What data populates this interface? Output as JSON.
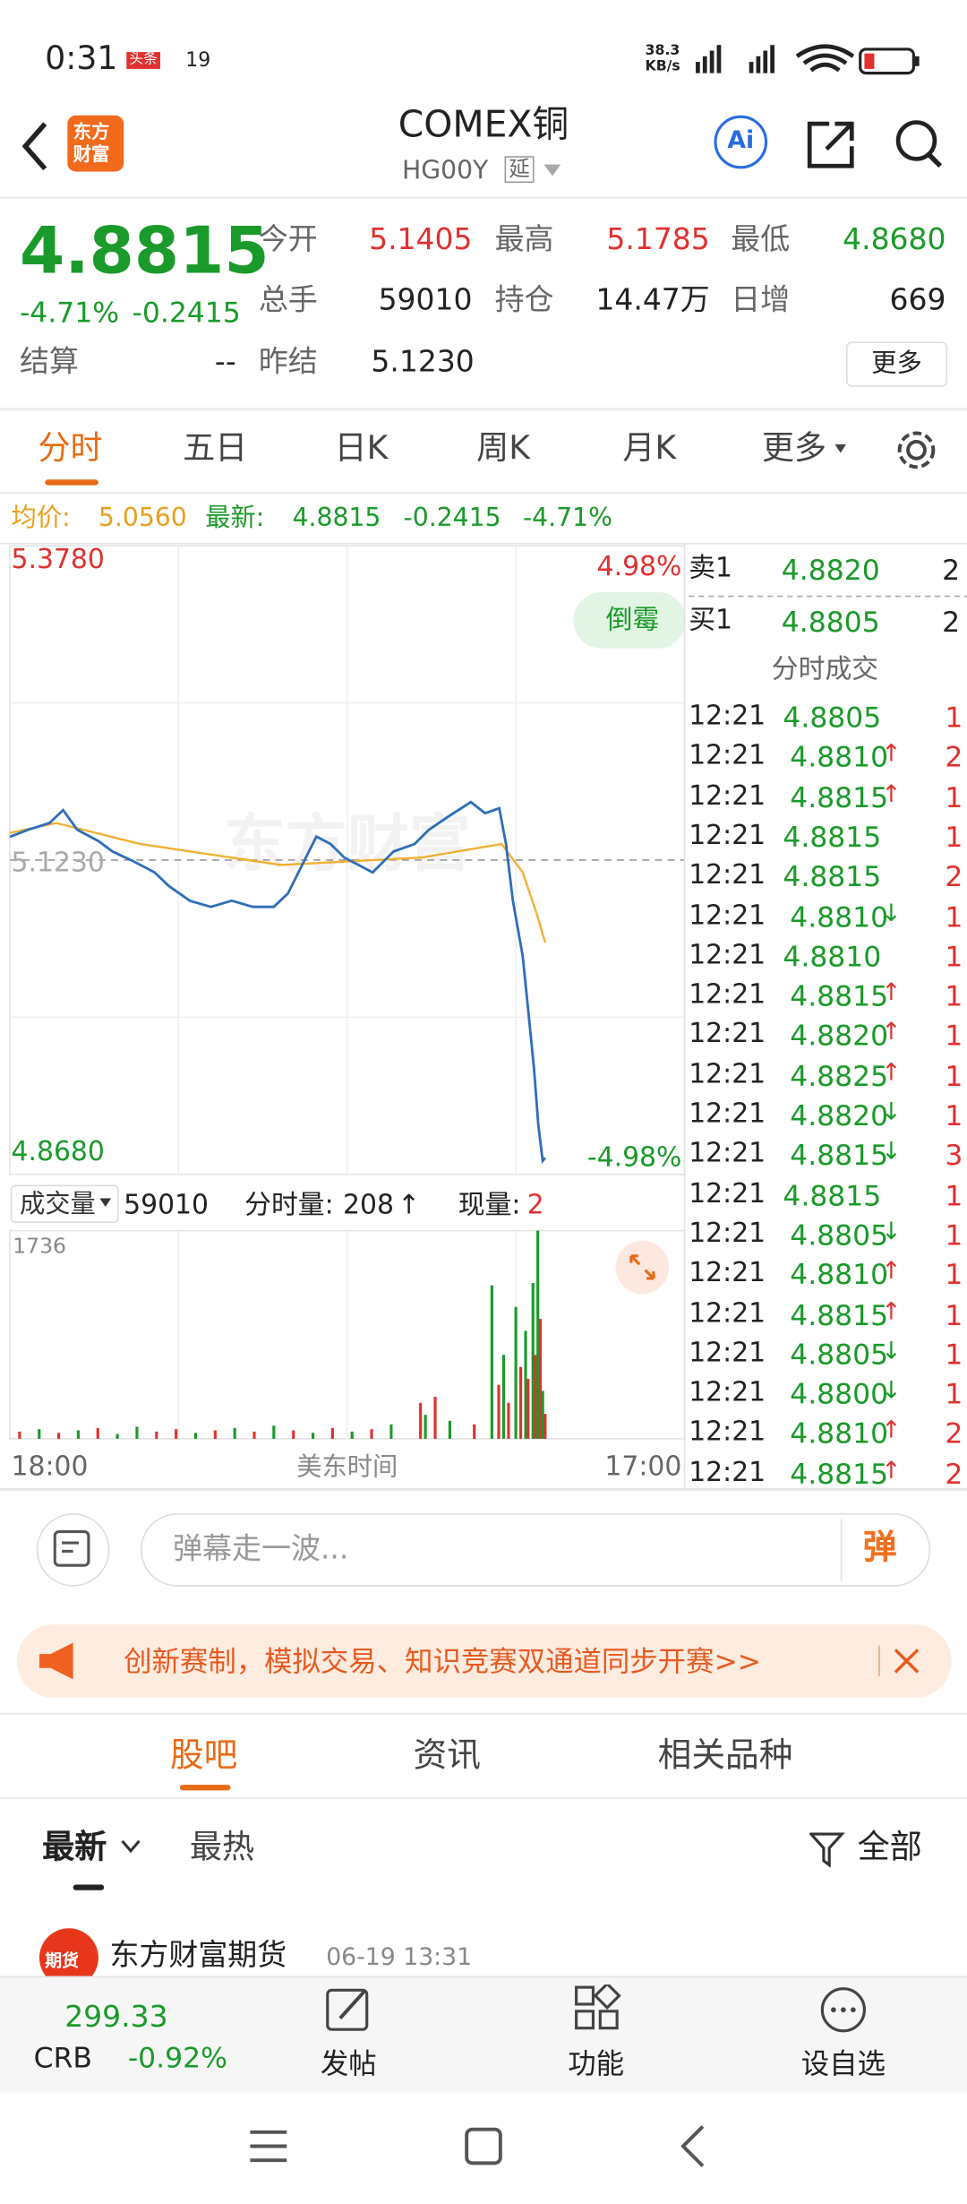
{
  "status": {
    "time": "0:31",
    "tag": "头条",
    "speed": "38.3",
    "speed_unit": "KB/s",
    "battery": "19"
  },
  "header": {
    "logo": [
      "东方",
      "财富"
    ],
    "title": "COMEX铜",
    "code": "HG00Y",
    "delay": "延",
    "ai": "Ai"
  },
  "quote": {
    "last": "4.8815",
    "pct": "-4.71%",
    "chg": "-0.2415",
    "fields": [
      {
        "label": "今开",
        "value": "5.1405"
      },
      {
        "label": "最高",
        "value": "5.1785"
      },
      {
        "label": "最低",
        "value": "4.8680"
      },
      {
        "label": "总手",
        "value": "59010"
      },
      {
        "label": "持仓",
        "value": "14.47万"
      },
      {
        "label": "日增",
        "value": "669"
      },
      {
        "label": "结算",
        "value": "--"
      },
      {
        "label": "昨结",
        "value": "5.1230"
      }
    ],
    "more": "更多"
  },
  "tabs": [
    "分时",
    "五日",
    "日K",
    "周K",
    "月K",
    "更多"
  ],
  "infobar": {
    "avg_label": "均价:",
    "avg": "5.0560",
    "latest_label": "最新:",
    "latest": "4.8815",
    "chg": "-0.2415",
    "pct": "-4.71%"
  },
  "chart_data": [
    {
      "type": "line",
      "badge": "倒霉",
      "watermark": "东方财富",
      "xlabel": "美东时间",
      "xlim": [
        0,
        1380
      ],
      "xticks": [
        {
          "value": 0,
          "label": "18:00"
        },
        {
          "value": 1380,
          "label": "17:00"
        }
      ],
      "ylim": [
        4.868,
        5.378
      ],
      "yticks": [
        {
          "value": 5.378,
          "label": "5.3780"
        },
        {
          "value": 5.123,
          "label": "5.1230"
        },
        {
          "value": 4.868,
          "label": "4.8680"
        }
      ],
      "y2lim": [
        -4.98,
        4.98
      ],
      "y2ticks": [
        {
          "value": 4.98,
          "label": "4.98%"
        },
        {
          "value": -4.98,
          "label": "-4.98%"
        }
      ],
      "series": [
        {
          "color": "#2f6eba",
          "x": [
            0,
            37,
            81,
            109,
            138,
            181,
            210,
            253,
            296,
            325,
            368,
            411,
            454,
            497,
            540,
            569,
            598,
            627,
            656,
            684,
            713,
            742,
            785,
            828,
            857,
            900,
            943,
            972,
            1001,
            1015,
            1029,
            1049,
            1061,
            1072,
            1081,
            1090,
            1095
          ],
          "values": [
            5.1418,
            5.1475,
            5.153,
            5.1635,
            5.1475,
            5.1384,
            5.13,
            5.122,
            5.113,
            5.102,
            5.09,
            5.085,
            5.09,
            5.085,
            5.085,
            5.096,
            5.119,
            5.142,
            5.136,
            5.125,
            5.119,
            5.113,
            5.13,
            5.136,
            5.1475,
            5.159,
            5.17,
            5.161,
            5.165,
            5.136,
            5.09,
            5.045,
            4.999,
            4.954,
            4.908,
            4.879,
            4.8815
          ]
        },
        {
          "color": "#f0b030",
          "x": [
            0,
            95,
            267,
            555,
            842,
            1006,
            1049,
            1078,
            1095
          ],
          "values": [
            5.145,
            5.153,
            5.136,
            5.119,
            5.125,
            5.136,
            5.113,
            5.079,
            5.056
          ]
        }
      ]
    },
    {
      "type": "bar",
      "title": "成交量",
      "total": "59010",
      "cur_label": "分时量:",
      "cur": "208",
      "now_label": "现量:",
      "now": "2",
      "xlim": [
        0,
        1380
      ],
      "ylim": [
        0,
        1736
      ],
      "yticks": [
        1736
      ],
      "x": [
        20,
        60,
        100,
        140,
        180,
        220,
        260,
        300,
        340,
        380,
        420,
        460,
        500,
        540,
        580,
        620,
        660,
        700,
        740,
        780,
        840,
        850,
        870,
        900,
        950,
        986,
        1000,
        1010,
        1020,
        1035,
        1045,
        1055,
        1060,
        1070,
        1075,
        1080,
        1085,
        1090,
        1095
      ],
      "values": [
        60,
        80,
        50,
        70,
        90,
        40,
        100,
        60,
        80,
        50,
        70,
        90,
        60,
        110,
        70,
        50,
        90,
        60,
        80,
        120,
        300,
        200,
        350,
        150,
        120,
        1280,
        450,
        700,
        300,
        1100,
        600,
        900,
        500,
        1300,
        700,
        1736,
        1000,
        400,
        208
      ],
      "colors": [
        "#e0312f",
        "#1a9a2a",
        "#e0312f",
        "#1a9a2a",
        "#e0312f",
        "#1a9a2a",
        "#1a9a2a",
        "#e0312f",
        "#e0312f",
        "#1a9a2a",
        "#e0312f",
        "#1a9a2a",
        "#e0312f",
        "#1a9a2a",
        "#e0312f",
        "#1a9a2a",
        "#e0312f",
        "#1a9a2a",
        "#e0312f",
        "#1a9a2a",
        "#e0312f",
        "#1a9a2a",
        "#e0312f",
        "#1a9a2a",
        "#e0312f",
        "#1a9a2a",
        "#e0312f",
        "#1a9a2a",
        "#e0312f",
        "#1a9a2a",
        "#e0312f",
        "#1a9a2a",
        "#e0312f",
        "#1a9a2a",
        "#e0312f",
        "#1a9a2a",
        "#e0312f",
        "#1a9a2a",
        "#e0312f"
      ]
    }
  ],
  "book": {
    "asks": [
      {
        "label": "卖1",
        "price": "4.8820",
        "qty": "2"
      }
    ],
    "bids": [
      {
        "label": "买1",
        "price": "4.8805",
        "qty": "2"
      }
    ],
    "trades_title": "分时成交",
    "trades": [
      {
        "time": "12:21",
        "price": "4.8805",
        "arrow": null,
        "qty": "1"
      },
      {
        "time": "12:21",
        "price": "4.8810",
        "arrow": "↑",
        "qty": "2"
      },
      {
        "time": "12:21",
        "price": "4.8815",
        "arrow": "↑",
        "qty": "1"
      },
      {
        "time": "12:21",
        "price": "4.8815",
        "arrow": null,
        "qty": "1"
      },
      {
        "time": "12:21",
        "price": "4.8815",
        "arrow": null,
        "qty": "2"
      },
      {
        "time": "12:21",
        "price": "4.8810",
        "arrow": "↓",
        "qty": "1"
      },
      {
        "time": "12:21",
        "price": "4.8810",
        "arrow": null,
        "qty": "1"
      },
      {
        "time": "12:21",
        "price": "4.8815",
        "arrow": "↑",
        "qty": "1"
      },
      {
        "time": "12:21",
        "price": "4.8820",
        "arrow": "↑",
        "qty": "1"
      },
      {
        "time": "12:21",
        "price": "4.8825",
        "arrow": "↑",
        "qty": "1"
      },
      {
        "time": "12:21",
        "price": "4.8820",
        "arrow": "↓",
        "qty": "1"
      },
      {
        "time": "12:21",
        "price": "4.8815",
        "arrow": "↓",
        "qty": "3"
      },
      {
        "time": "12:21",
        "price": "4.8815",
        "arrow": null,
        "qty": "1"
      },
      {
        "time": "12:21",
        "price": "4.8805",
        "arrow": "↓",
        "qty": "1"
      },
      {
        "time": "12:21",
        "price": "4.8810",
        "arrow": "↑",
        "qty": "1"
      },
      {
        "time": "12:21",
        "price": "4.8815",
        "arrow": "↑",
        "qty": "1"
      },
      {
        "time": "12:21",
        "price": "4.8805",
        "arrow": "↓",
        "qty": "1"
      },
      {
        "time": "12:21",
        "price": "4.8800",
        "arrow": "↓",
        "qty": "1"
      },
      {
        "time": "12:21",
        "price": "4.8810",
        "arrow": "↑",
        "qty": "2"
      },
      {
        "time": "12:21",
        "price": "4.8815",
        "arrow": "↑",
        "qty": "2"
      }
    ]
  },
  "comment": {
    "placeholder": "弹幕走一波...",
    "button": "弹"
  },
  "banner": {
    "text": "创新赛制，模拟交易、知识竞赛双通道同步开赛>>"
  },
  "tabs2": [
    "股吧",
    "资讯",
    "相关品种"
  ],
  "sort": {
    "options": [
      "最新",
      "最热"
    ],
    "filter": "全部"
  },
  "post": {
    "avatar": "期货",
    "author": "东方财富期货",
    "date": "06-19 13:31"
  },
  "bottom": {
    "value": "299.33",
    "name": "CRB",
    "pct": "-0.92%",
    "buttons": [
      "发帖",
      "功能",
      "设自选"
    ]
  }
}
